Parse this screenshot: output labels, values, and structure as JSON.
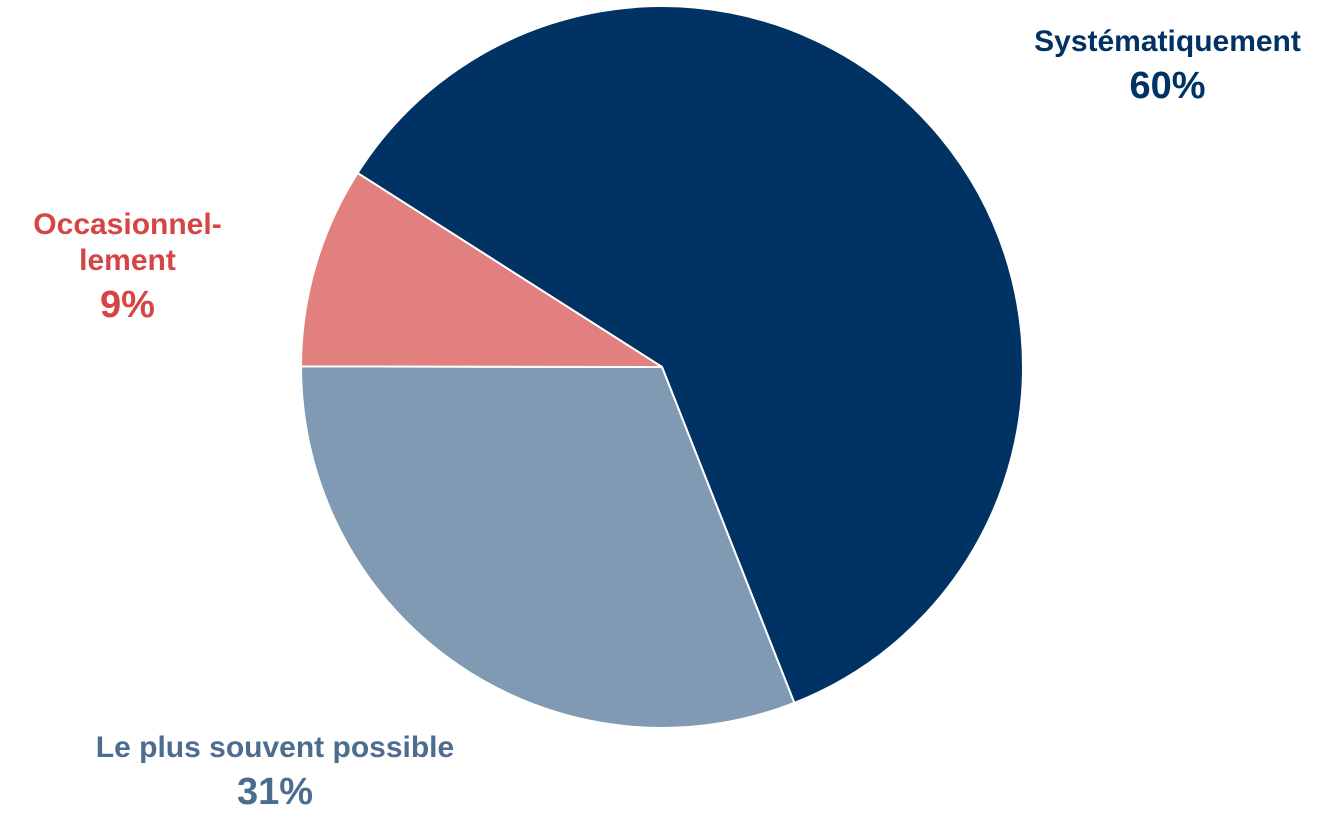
{
  "chart_data": {
    "type": "pie",
    "slices": [
      {
        "label": "Systématiquement",
        "value": 60,
        "value_label": "60%",
        "color": "#003263"
      },
      {
        "label": "Le plus souvent possible",
        "value": 31,
        "value_label": "31%",
        "color": "#809AB4"
      },
      {
        "label": "Occasionnel-\nlement",
        "value": 9,
        "value_label": "9%",
        "color": "#E27F7F"
      }
    ],
    "label_colors": [
      "#003263",
      "#4D6D8F",
      "#D64545"
    ],
    "legend": false
  }
}
